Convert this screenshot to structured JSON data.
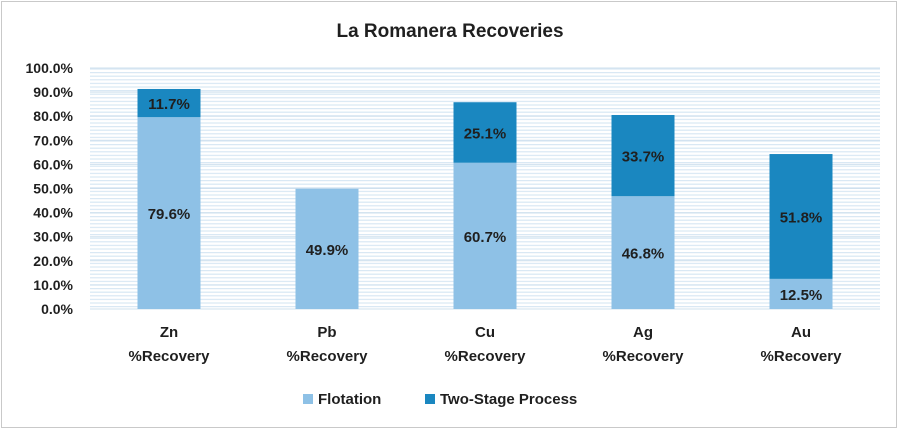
{
  "chart_data": {
    "type": "bar",
    "stacked": true,
    "title": "La Romanera Recoveries",
    "xlabel": "",
    "ylabel": "",
    "categories": [
      [
        "Zn",
        "%Recovery"
      ],
      [
        "Pb",
        "%Recovery"
      ],
      [
        "Cu",
        "%Recovery"
      ],
      [
        "Ag",
        "%Recovery"
      ],
      [
        "Au",
        "%Recovery"
      ]
    ],
    "series": [
      {
        "name": "Flotation",
        "color": "#8ec1e6",
        "values": [
          79.6,
          49.9,
          60.7,
          46.8,
          12.5
        ],
        "labels": [
          "79.6%",
          "49.9%",
          "60.7%",
          "46.8%",
          "12.5%"
        ]
      },
      {
        "name": "Two-Stage Process",
        "color": "#1a87c0",
        "values": [
          11.7,
          null,
          25.1,
          33.7,
          51.8
        ],
        "labels": [
          "11.7%",
          "",
          "25.1%",
          "33.7%",
          "51.8%"
        ]
      }
    ],
    "ylim": [
      0,
      100
    ],
    "yticks": [
      "0.0%",
      "10.0%",
      "20.0%",
      "30.0%",
      "40.0%",
      "50.0%",
      "60.0%",
      "70.0%",
      "80.0%",
      "90.0%",
      "100.0%"
    ],
    "grid": true,
    "legend_position": "bottom"
  }
}
